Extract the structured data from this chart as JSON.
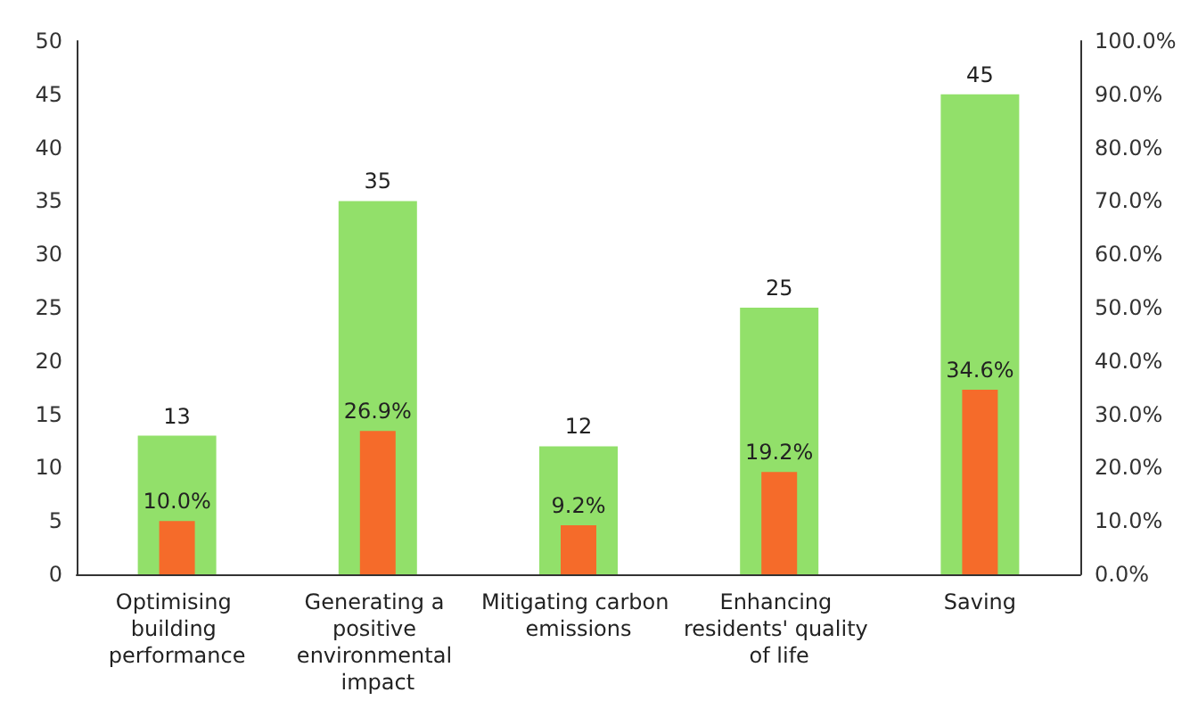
{
  "chart_data": {
    "type": "bar",
    "categories": [
      "Optimising building performance",
      "Generating a positive environmental impact",
      "Mitigating carbon emissions",
      "Enhancing residents' quality of life",
      "Saving"
    ],
    "series": [
      {
        "name": null,
        "color": "#92e06a",
        "values": [
          13,
          35,
          12,
          25,
          45
        ],
        "value_labels": [
          "13",
          "35",
          "12",
          "25",
          "45"
        ]
      },
      {
        "name": null,
        "color": "#f56b2a",
        "axis": "y2",
        "values": [
          10.0,
          26.9,
          9.2,
          19.2,
          34.6
        ],
        "value_labels": [
          "10.0%",
          "26.9%",
          "9.2%",
          "19.2%",
          "34.6%"
        ]
      }
    ],
    "ylim": [
      0,
      50
    ],
    "yticks": [
      0,
      5,
      10,
      15,
      20,
      25,
      30,
      35,
      40,
      45,
      50
    ],
    "y2lim": [
      0,
      100
    ],
    "y2ticks": [
      {
        "value": 0,
        "label": "0.0%"
      },
      {
        "value": 10,
        "label": "10.0%"
      },
      {
        "value": 20,
        "label": "20.0%"
      },
      {
        "value": 30,
        "label": "30.0%"
      },
      {
        "value": 40,
        "label": "40.0%"
      },
      {
        "value": 50,
        "label": "50.0%"
      },
      {
        "value": 60,
        "label": "60.0%"
      },
      {
        "value": 70,
        "label": "70.0%"
      },
      {
        "value": 80,
        "label": "80.0%"
      },
      {
        "value": 90,
        "label": "90.0%"
      },
      {
        "value": 100,
        "label": "100.0%"
      }
    ],
    "grid": false
  }
}
